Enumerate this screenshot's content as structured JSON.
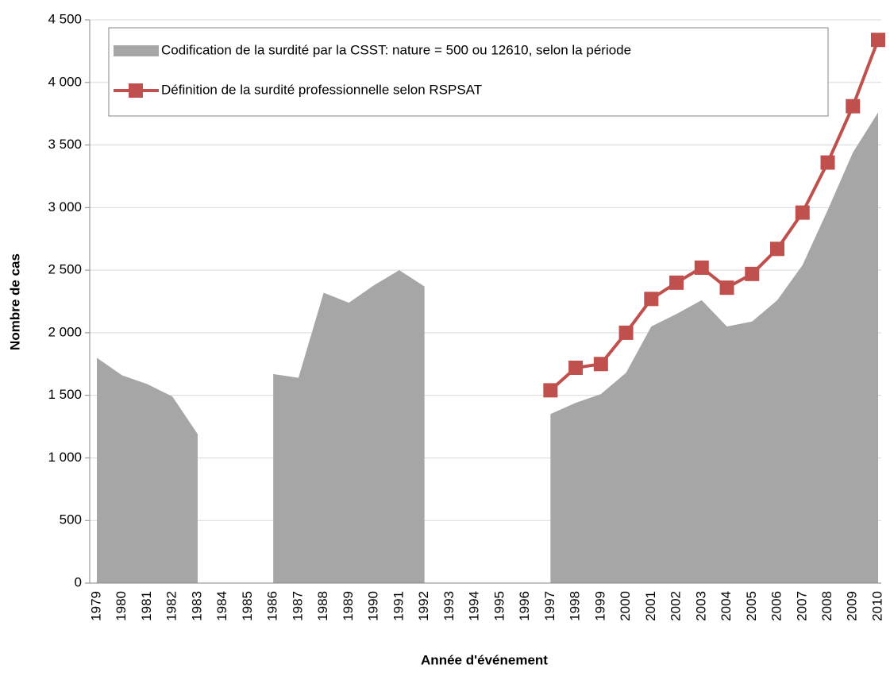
{
  "chart_data": {
    "type": "area-line",
    "xlabel": "Année d'événement",
    "ylabel": "Nombre de cas",
    "categories": [
      "1979",
      "1980",
      "1981",
      "1982",
      "1983",
      "1984",
      "1985",
      "1986",
      "1987",
      "1988",
      "1989",
      "1990",
      "1991",
      "1992",
      "1993",
      "1994",
      "1995",
      "1996",
      "1997",
      "1998",
      "1999",
      "2000",
      "2001",
      "2002",
      "2003",
      "2004",
      "2005",
      "2006",
      "2007",
      "2008",
      "2009",
      "2010"
    ],
    "series": [
      {
        "name": "Codification de la surdité par la CSST: nature = 500 ou 12610, selon la période",
        "type": "area",
        "color": "#a6a6a6",
        "values": [
          1800,
          1660,
          1590,
          1490,
          1190,
          null,
          null,
          1670,
          1640,
          2320,
          2240,
          2380,
          2500,
          2370,
          null,
          null,
          null,
          null,
          1350,
          1440,
          1510,
          1680,
          2050,
          2150,
          2260,
          2050,
          2090,
          2260,
          2540,
          2980,
          3440,
          3760
        ]
      },
      {
        "name": "Définition de la surdité professionnelle selon RSPSAT",
        "type": "line",
        "color": "#c0504d",
        "values": [
          null,
          null,
          null,
          null,
          null,
          null,
          null,
          null,
          null,
          null,
          null,
          null,
          null,
          null,
          null,
          null,
          null,
          null,
          1540,
          1720,
          1750,
          2000,
          2270,
          2400,
          2520,
          2360,
          2470,
          2670,
          2960,
          3360,
          3810,
          4340
        ]
      }
    ],
    "ylim": [
      0,
      4500
    ],
    "yticks": [
      0,
      500,
      {
        "value": 1000,
        "label": "1 000"
      },
      {
        "value": 1500,
        "label": "1 500"
      },
      {
        "value": 2000,
        "label": "2 000"
      },
      {
        "value": 2500,
        "label": "2 500"
      },
      {
        "value": 3000,
        "label": "3 000"
      },
      {
        "value": 3500,
        "label": "3 500"
      },
      {
        "value": 4000,
        "label": "4 000"
      },
      {
        "value": 4500,
        "label": "4 500"
      }
    ],
    "grid": true,
    "legend": "top-left"
  }
}
